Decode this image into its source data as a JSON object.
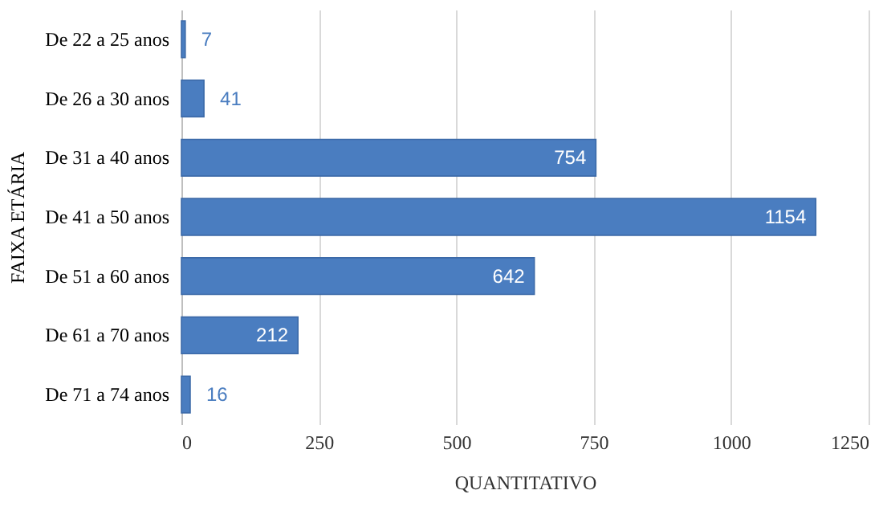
{
  "chart_data": {
    "type": "bar",
    "orientation": "horizontal",
    "xlabel": "QUANTITATIVO",
    "ylabel": "FAIXA ETÁRIA",
    "categories": [
      "De 22 a 25 anos",
      "De 26 a 30 anos",
      "De 31 a 40 anos",
      "De 41 a 50 anos",
      "De 51 a 60 anos",
      "De 61 a 70 anos",
      "De 71 a 74 anos"
    ],
    "values": [
      7,
      41,
      754,
      1154,
      642,
      212,
      16
    ],
    "color": "#4a7dc0",
    "xlim": [
      0,
      1250
    ],
    "xticks": [
      0,
      250,
      500,
      750,
      1000,
      1250
    ],
    "grid": true,
    "data_labels": true
  }
}
